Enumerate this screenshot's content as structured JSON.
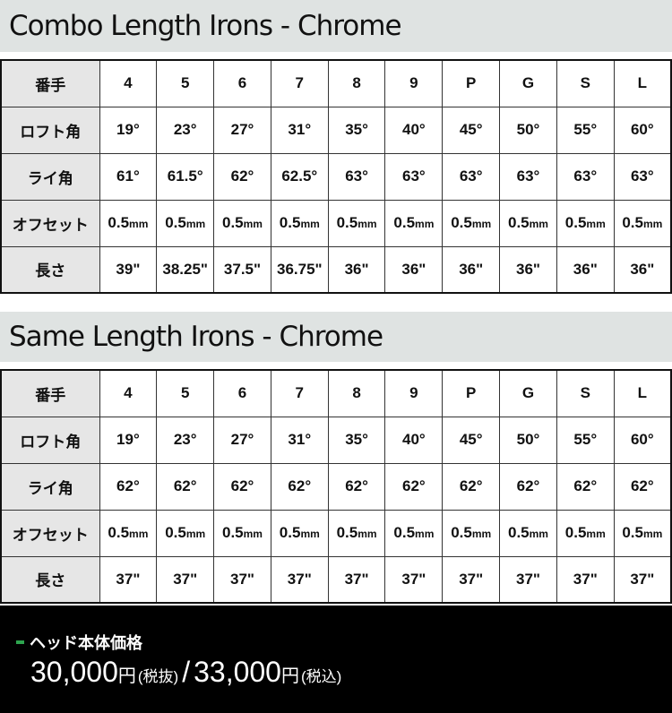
{
  "tables": [
    {
      "title": "Combo Length Irons - Chrome",
      "rows": [
        {
          "label": "番手",
          "cells": [
            "4",
            "5",
            "6",
            "7",
            "8",
            "9",
            "P",
            "G",
            "S",
            "L"
          ]
        },
        {
          "label": "ロフト角",
          "cells": [
            "19°",
            "23°",
            "27°",
            "31°",
            "35°",
            "40°",
            "45°",
            "50°",
            "55°",
            "60°"
          ]
        },
        {
          "label": "ライ角",
          "cells": [
            "61°",
            "61.5°",
            "62°",
            "62.5°",
            "63°",
            "63°",
            "63°",
            "63°",
            "63°",
            "63°"
          ]
        },
        {
          "label": "オフセット",
          "unit": "mm",
          "cells": [
            "0.5",
            "0.5",
            "0.5",
            "0.5",
            "0.5",
            "0.5",
            "0.5",
            "0.5",
            "0.5",
            "0.5"
          ]
        },
        {
          "label": "長さ",
          "cells": [
            "39\"",
            "38.25\"",
            "37.5\"",
            "36.75\"",
            "36\"",
            "36\"",
            "36\"",
            "36\"",
            "36\"",
            "36\""
          ]
        }
      ]
    },
    {
      "title": "Same Length Irons - Chrome",
      "rows": [
        {
          "label": "番手",
          "cells": [
            "4",
            "5",
            "6",
            "7",
            "8",
            "9",
            "P",
            "G",
            "S",
            "L"
          ]
        },
        {
          "label": "ロフト角",
          "cells": [
            "19°",
            "23°",
            "27°",
            "31°",
            "35°",
            "40°",
            "45°",
            "50°",
            "55°",
            "60°"
          ]
        },
        {
          "label": "ライ角",
          "cells": [
            "62°",
            "62°",
            "62°",
            "62°",
            "62°",
            "62°",
            "62°",
            "62°",
            "62°",
            "62°"
          ]
        },
        {
          "label": "オフセット",
          "unit": "mm",
          "cells": [
            "0.5",
            "0.5",
            "0.5",
            "0.5",
            "0.5",
            "0.5",
            "0.5",
            "0.5",
            "0.5",
            "0.5"
          ]
        },
        {
          "label": "長さ",
          "cells": [
            "37\"",
            "37\"",
            "37\"",
            "37\"",
            "37\"",
            "37\"",
            "37\"",
            "37\"",
            "37\"",
            "37\""
          ]
        }
      ]
    }
  ],
  "price": {
    "title": "ヘッド本体価格",
    "ex_amount": "30,000",
    "ex_yen": "円",
    "ex_tax": "(税抜)",
    "separator": "/",
    "in_amount": "33,000",
    "in_yen": "円",
    "in_tax": "(税込)",
    "accent": "#2da44e"
  }
}
